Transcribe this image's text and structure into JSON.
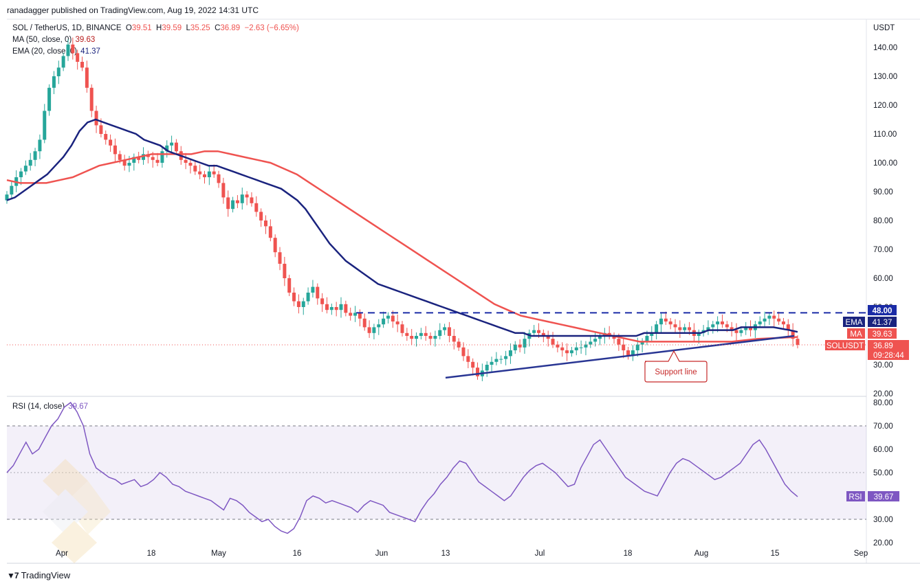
{
  "header": {
    "publisher": "ranadagger published on TradingView.com, Aug 19, 2022 14:31 UTC",
    "symbol": "SOL / TetherUS, 1D, BINANCE",
    "ohlc": {
      "o_label": "O",
      "o": "39.51",
      "h_label": "H",
      "h": "39.59",
      "l_label": "L",
      "l": "35.25",
      "c_label": "C",
      "c": "36.89",
      "change": "−2.63 (−6.65%)"
    },
    "ma_label": "MA (50, close, 0)",
    "ma_value": "39.63",
    "ema_label": "EMA (20, close, 0)",
    "ema_value": "41.37",
    "rsi_label": "RSI (14, close)",
    "rsi_value": "39.67"
  },
  "footer": {
    "brand": "TradingView"
  },
  "colors": {
    "up": "#26a69a",
    "down": "#ef5350",
    "ema": "#1a237e",
    "ma": "#ef5350",
    "rsi": "#7e57c2",
    "resistance": "#1a2ba6",
    "support": "#283593"
  },
  "tags": {
    "resistance": "48.00",
    "ema_name": "EMA",
    "ema_val": "41.37",
    "ma_name": "MA",
    "ma_val": "39.63",
    "sym_name": "SOLUSDT",
    "sym_val": "36.89",
    "countdown": "09:28:44",
    "rsi_name": "RSI",
    "rsi_val": "39.67"
  },
  "annotations": {
    "support": "Support line"
  },
  "chart_data": [
    {
      "type": "candlestick",
      "unit": "USDT",
      "ylim": [
        20,
        140
      ],
      "y_ticks": [
        "140.00",
        "130.00",
        "120.00",
        "110.00",
        "100.00",
        "90.00",
        "80.00",
        "70.00",
        "60.00",
        "50.00",
        "30.00",
        "20.00"
      ],
      "x_ticks": [
        "Apr",
        "18",
        "May",
        "16",
        "Jun",
        "13",
        "Jul",
        "18",
        "Aug",
        "15",
        "Sep"
      ],
      "resistance_level": 48,
      "support_line": {
        "from": [
          "Jun 13",
          25.5
        ],
        "to": [
          "Aug 18",
          40
        ]
      },
      "close_approx": [
        89,
        92,
        95,
        97,
        99,
        101,
        104,
        108,
        118,
        126,
        130,
        133,
        137,
        141,
        138,
        135,
        133,
        126,
        118,
        113,
        110,
        108,
        106,
        103,
        101,
        99,
        100,
        102,
        101,
        103,
        102,
        101,
        100,
        104,
        106,
        107,
        104,
        101,
        100,
        99,
        97,
        96,
        95,
        97,
        96,
        93,
        88,
        84,
        87,
        86,
        89,
        88,
        86,
        83,
        80,
        78,
        74,
        69,
        65,
        60,
        55,
        52,
        50,
        52,
        55,
        57,
        53,
        51,
        49,
        50,
        49,
        51,
        48,
        47,
        48,
        46,
        43,
        41,
        43,
        44,
        46,
        47,
        45,
        44,
        41,
        40,
        39,
        40,
        41,
        40,
        39,
        40,
        42,
        43,
        40,
        38,
        36,
        33,
        31,
        29,
        26,
        28,
        30,
        31,
        32,
        32,
        33,
        35,
        37,
        36,
        39,
        41,
        42,
        41,
        40,
        39,
        37,
        36,
        35,
        34,
        35,
        36,
        36,
        37,
        38,
        39,
        40,
        41,
        40,
        39,
        37,
        35,
        33,
        35,
        37,
        38,
        40,
        41,
        44,
        46,
        45,
        44,
        43,
        42,
        43,
        42,
        40,
        41,
        42,
        43,
        44,
        45,
        44,
        43,
        42,
        41,
        42,
        43,
        42,
        44,
        45,
        46,
        47,
        46,
        45,
        44,
        42,
        39,
        36.89
      ],
      "ema20_approx": [
        87,
        88,
        90,
        92,
        94,
        96,
        99,
        102,
        106,
        111,
        114,
        115,
        114,
        113,
        112,
        111,
        110,
        108,
        107,
        106,
        104,
        103,
        102,
        101,
        100,
        99,
        99,
        98,
        97,
        96,
        95,
        94,
        93,
        92,
        91,
        89,
        87,
        84,
        80,
        76,
        72,
        69,
        66,
        64,
        62,
        60,
        58,
        57,
        56,
        55,
        54,
        53,
        52,
        51,
        50,
        49,
        48,
        47,
        46,
        45,
        44,
        43,
        42,
        41,
        41,
        40,
        40,
        40,
        40,
        40,
        40,
        40,
        40,
        40,
        40,
        40,
        40,
        40,
        40,
        41,
        41,
        41,
        41,
        41,
        41,
        41,
        41,
        42,
        42,
        42,
        42,
        43,
        43,
        43,
        43,
        43,
        42.5,
        42,
        41.37
      ],
      "ma50_approx": [
        94,
        93,
        93,
        93,
        94,
        95,
        97,
        99,
        100,
        101,
        102,
        103,
        103,
        103,
        103,
        104,
        104,
        103,
        102,
        101,
        100,
        98,
        96,
        93,
        90,
        87,
        84,
        81,
        78,
        75,
        72,
        69,
        66,
        63,
        60,
        57,
        54,
        51,
        49,
        47,
        46,
        45,
        44,
        43,
        42,
        41,
        40,
        39,
        38,
        38,
        38,
        38,
        38,
        38,
        38,
        38,
        38.5,
        39,
        39.2,
        39.4,
        39.63
      ]
    },
    {
      "type": "line",
      "name": "RSI (14, close)",
      "ylim": [
        20,
        80
      ],
      "y_ticks": [
        "80.00",
        "70.00",
        "60.00",
        "50.00",
        "40.00",
        "30.00",
        "20.00"
      ],
      "band": [
        30,
        70
      ],
      "midline": 50,
      "values": [
        50,
        53,
        58,
        63,
        58,
        60,
        65,
        70,
        73,
        78,
        80,
        76,
        70,
        58,
        52,
        50,
        48,
        47,
        45,
        46,
        47,
        44,
        45,
        47,
        50,
        48,
        45,
        44,
        42,
        41,
        40,
        39,
        38,
        36,
        34,
        39,
        38,
        36,
        33,
        31,
        29,
        30,
        27,
        25,
        24,
        26,
        31,
        38,
        40,
        39,
        37,
        38,
        37,
        36,
        35,
        33,
        36,
        38,
        37,
        36,
        33,
        32,
        31,
        30,
        29,
        34,
        38,
        41,
        45,
        48,
        52,
        55,
        54,
        50,
        46,
        44,
        42,
        40,
        38,
        40,
        44,
        48,
        51,
        53,
        54,
        52,
        50,
        47,
        44,
        45,
        52,
        57,
        62,
        64,
        60,
        56,
        52,
        48,
        46,
        44,
        42,
        41,
        40,
        45,
        50,
        54,
        56,
        55,
        53,
        51,
        49,
        47,
        48,
        50,
        52,
        54,
        58,
        62,
        64,
        60,
        55,
        50,
        45,
        42,
        39.67
      ]
    }
  ]
}
